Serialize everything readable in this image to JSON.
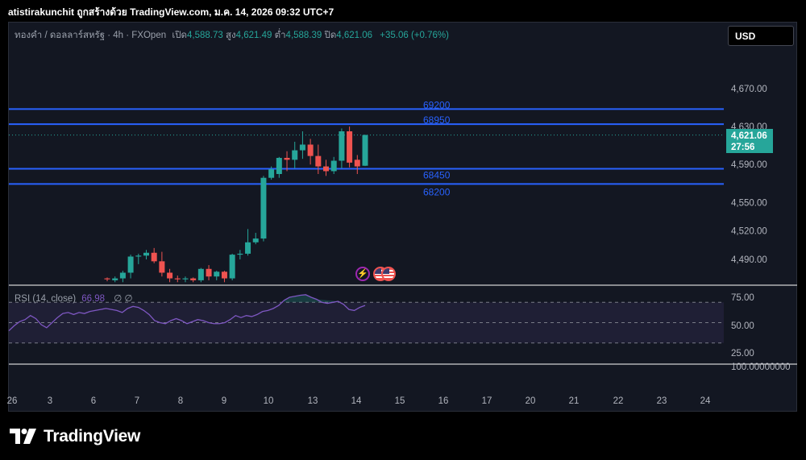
{
  "watermark": "atistirakunchit ถูกสร้างด้วย TradingView.com, ม.ค. 14, 2026 09:32 UTC+7",
  "legend": {
    "symbol": "ทองคำ / ดอลลาร์สหรัฐ · 4h · FXOpen",
    "open_label": "เปิด",
    "open": "4,588.73",
    "high_label": "สูง",
    "high": "4,621.49",
    "low_label": "ต่ำ",
    "low": "4,588.39",
    "close_label": "ปิด",
    "close": "4,621.06",
    "change": "+35.06 (+0.76%)"
  },
  "currency_button": "USD",
  "price_tag": {
    "price": "4,621.06",
    "countdown": "27:56"
  },
  "rsi_legend": {
    "name": "RSI (14, close)",
    "value": "66.98",
    "na1": "∅",
    "na2": "∅"
  },
  "footer": {
    "brand": "TradingView"
  },
  "icons": [
    "lightning-event-icon",
    "us-flag-icon",
    "us-flag-icon"
  ],
  "colors": {
    "up": "#26a69a",
    "down": "#ef5350",
    "hline": "#2962ff",
    "rsi": "#7e57c2",
    "bg": "#131722"
  },
  "chart_data": [
    {
      "type": "candlestick",
      "title": "ทองคำ / ดอลลาร์สหรัฐ · 4h · FXOpen",
      "x_tick_labels": [
        "26",
        "3",
        "6",
        "7",
        "8",
        "9",
        "10",
        "13",
        "14",
        "15",
        "16",
        "17",
        "20",
        "21",
        "22",
        "23",
        "24"
      ],
      "y_tick_labels": [
        "4,670.00",
        "4,630.00",
        "4,590.00",
        "4,550.00",
        "4,520.00",
        "4,490.00"
      ],
      "y_ticks": [
        4670,
        4630,
        4590,
        4550,
        4520,
        4490
      ],
      "ylim": [
        4468,
        4707
      ],
      "grid": false,
      "horizontal_lines": [
        {
          "label": "69200",
          "price": 4648.5
        },
        {
          "label": "68950",
          "price": 4632.5
        },
        {
          "label": "68450",
          "price": 4585.5
        },
        {
          "label": "68200",
          "price": 4569.5
        }
      ],
      "last_price": 4621.06,
      "candles": [
        {
          "date": "Jan 6",
          "o": 4470,
          "h": 4471,
          "l": 4467,
          "c": 4469
        },
        {
          "date": "Jan 6",
          "o": 4468,
          "h": 4472,
          "l": 4466,
          "c": 4470
        },
        {
          "date": "Jan 6",
          "o": 4470,
          "h": 4478,
          "l": 4466,
          "c": 4476
        },
        {
          "date": "Jan 7",
          "o": 4476,
          "h": 4495,
          "l": 4470,
          "c": 4493
        },
        {
          "date": "Jan 7",
          "o": 4493,
          "h": 4496,
          "l": 4485,
          "c": 4494
        },
        {
          "date": "Jan 7",
          "o": 4494,
          "h": 4500,
          "l": 4490,
          "c": 4497
        },
        {
          "date": "Jan 7",
          "o": 4497,
          "h": 4502,
          "l": 4486,
          "c": 4488
        },
        {
          "date": "Jan 7",
          "o": 4488,
          "h": 4498,
          "l": 4472,
          "c": 4476
        },
        {
          "date": "Jan 8",
          "o": 4476,
          "h": 4480,
          "l": 4466,
          "c": 4470
        },
        {
          "date": "Jan 8",
          "o": 4470,
          "h": 4473,
          "l": 4466,
          "c": 4469
        },
        {
          "date": "Jan 8",
          "o": 4469,
          "h": 4472,
          "l": 4466,
          "c": 4470
        },
        {
          "date": "Jan 8",
          "o": 4470,
          "h": 4471,
          "l": 4466,
          "c": 4468
        },
        {
          "date": "Jan 9",
          "o": 4468,
          "h": 4481,
          "l": 4466,
          "c": 4480
        },
        {
          "date": "Jan 9",
          "o": 4480,
          "h": 4484,
          "l": 4468,
          "c": 4472
        },
        {
          "date": "Jan 9",
          "o": 4472,
          "h": 4478,
          "l": 4468,
          "c": 4477
        },
        {
          "date": "Jan 9",
          "o": 4477,
          "h": 4478,
          "l": 4466,
          "c": 4470
        },
        {
          "date": "Jan 9",
          "o": 4470,
          "h": 4496,
          "l": 4468,
          "c": 4495
        },
        {
          "date": "Jan 9",
          "o": 4495,
          "h": 4500,
          "l": 4490,
          "c": 4496
        },
        {
          "date": "Jan 9",
          "o": 4496,
          "h": 4522,
          "l": 4494,
          "c": 4508
        },
        {
          "date": "Jan 12",
          "o": 4508,
          "h": 4518,
          "l": 4506,
          "c": 4512
        },
        {
          "date": "Jan 12",
          "o": 4512,
          "h": 4578,
          "l": 4509,
          "c": 4576
        },
        {
          "date": "Jan 12",
          "o": 4576,
          "h": 4588,
          "l": 4574,
          "c": 4585
        },
        {
          "date": "Jan 12",
          "o": 4580,
          "h": 4598,
          "l": 4576,
          "c": 4597
        },
        {
          "date": "Jan 12",
          "o": 4597,
          "h": 4604,
          "l": 4583,
          "c": 4595
        },
        {
          "date": "Jan 13",
          "o": 4595,
          "h": 4614,
          "l": 4586,
          "c": 4605
        },
        {
          "date": "Jan 13",
          "o": 4605,
          "h": 4625,
          "l": 4596,
          "c": 4611
        },
        {
          "date": "Jan 13",
          "o": 4611,
          "h": 4617,
          "l": 4590,
          "c": 4599
        },
        {
          "date": "Jan 13",
          "o": 4599,
          "h": 4611,
          "l": 4580,
          "c": 4588
        },
        {
          "date": "Jan 13",
          "o": 4588,
          "h": 4595,
          "l": 4578,
          "c": 4583
        },
        {
          "date": "Jan 13",
          "o": 4583,
          "h": 4598,
          "l": 4580,
          "c": 4594
        },
        {
          "date": "Jan 14",
          "o": 4594,
          "h": 4628,
          "l": 4586,
          "c": 4625
        },
        {
          "date": "Jan 14",
          "o": 4625,
          "h": 4630,
          "l": 4587,
          "c": 4592
        },
        {
          "date": "Jan 14",
          "o": 4595,
          "h": 4600,
          "l": 4580,
          "c": 4588
        },
        {
          "date": "Jan 14",
          "o": 4588.73,
          "h": 4621.49,
          "l": 4588.39,
          "c": 4621.06
        }
      ]
    },
    {
      "type": "line",
      "title": "RSI (14, close)",
      "y_tick_labels": [
        "75.00",
        "50.00",
        "25.00",
        "100.00000000"
      ],
      "bands": [
        70,
        50,
        30
      ],
      "ylim": [
        0,
        100
      ],
      "last_value": 66.98,
      "values": [
        42,
        47,
        51,
        53,
        57,
        54,
        48,
        45,
        50,
        55,
        59,
        60,
        58,
        60,
        59,
        61,
        62,
        63,
        64,
        63,
        62,
        60,
        64,
        66,
        65,
        62,
        58,
        52,
        50,
        49,
        52,
        54,
        52,
        49,
        51,
        53,
        52,
        50,
        49,
        49,
        50,
        53,
        57,
        55,
        57,
        56,
        58,
        61,
        62,
        64,
        67,
        72,
        75,
        76,
        77,
        77.5,
        75,
        73,
        70,
        69,
        70,
        71,
        68,
        63,
        62,
        65,
        67
      ]
    }
  ]
}
